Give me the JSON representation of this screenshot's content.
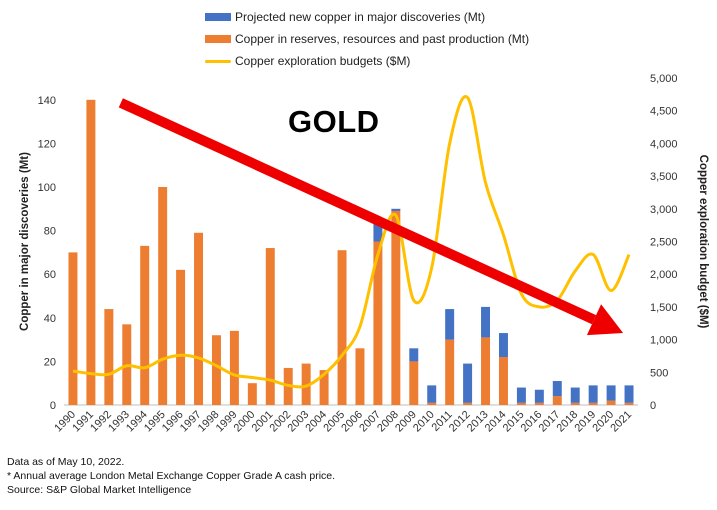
{
  "legend": {
    "series1": "Projected new copper in major discoveries (Mt)",
    "series2": "Copper in reserves, resources and past production (Mt)",
    "series3": "Copper exploration budgets ($M)"
  },
  "annotation": {
    "text": "GOLD"
  },
  "footnotes": {
    "line1": "Data as of May 10, 2022.",
    "line2": "* Annual average London Metal Exchange Copper Grade A cash price.",
    "line3": "Source: S&P Global Market Intelligence"
  },
  "colors": {
    "projected": "#4472C4",
    "reserves": "#ED7D31",
    "budget": "#FFC000",
    "arrow": "#EE0000"
  },
  "chart_data": {
    "type": "bar",
    "categories": [
      "1990",
      "1991",
      "1992",
      "1993",
      "1994",
      "1995",
      "1996",
      "1997",
      "1998",
      "1999",
      "2000",
      "2001",
      "2002",
      "2003",
      "2004",
      "2005",
      "2006",
      "2007",
      "2008",
      "2009",
      "2010",
      "2011",
      "2012",
      "2013",
      "2014",
      "2015",
      "2016",
      "2017",
      "2018",
      "2019",
      "2020",
      "2021"
    ],
    "series": [
      {
        "name": "Copper in reserves, resources and past production (Mt)",
        "kind": "stacked-bar",
        "axis": "left",
        "values": [
          70,
          140,
          44,
          37,
          73,
          100,
          62,
          79,
          32,
          34,
          10,
          72,
          17,
          19,
          16,
          71,
          26,
          75,
          89,
          20,
          1,
          30,
          1,
          31,
          22,
          1,
          1,
          4,
          1,
          1,
          2,
          1
        ]
      },
      {
        "name": "Projected new copper in major discoveries (Mt)",
        "kind": "stacked-bar",
        "axis": "left",
        "values": [
          0,
          0,
          0,
          0,
          0,
          0,
          0,
          0,
          0,
          0,
          0,
          0,
          0,
          0,
          0,
          0,
          0,
          8,
          1,
          6,
          8,
          14,
          18,
          14,
          11,
          7,
          6,
          7,
          7,
          8,
          7,
          8
        ]
      },
      {
        "name": "Copper exploration budgets ($M)",
        "kind": "line",
        "axis": "right",
        "values": [
          520,
          480,
          470,
          600,
          570,
          700,
          760,
          720,
          600,
          460,
          420,
          380,
          300,
          290,
          470,
          760,
          1200,
          2300,
          2900,
          1600,
          2100,
          4000,
          4700,
          3400,
          2600,
          1700,
          1500,
          1600,
          2050,
          2300,
          1750,
          2300
        ]
      }
    ],
    "ylabel": "Copper in major discoveries (Mt)",
    "y2label": "Copper exploration budget ($M)",
    "ylim": [
      0,
      150
    ],
    "yticks": [
      0,
      20,
      40,
      60,
      80,
      100,
      120,
      140
    ],
    "y2lim": [
      0,
      5000
    ],
    "y2ticks": [
      0,
      500,
      1000,
      1500,
      2000,
      2500,
      3000,
      3500,
      4000,
      4500,
      5000
    ],
    "y2ticklabels": [
      "0",
      "500",
      "1,000",
      "1,500",
      "2,000",
      "2,500",
      "3,000",
      "3,500",
      "4,000",
      "4,500",
      "5,000"
    ],
    "grid": false,
    "legend_position": "top-center",
    "arrow": {
      "from": {
        "category": "1992",
        "value_left": 140
      },
      "to": {
        "category": "2020",
        "value_left": 33
      }
    }
  }
}
